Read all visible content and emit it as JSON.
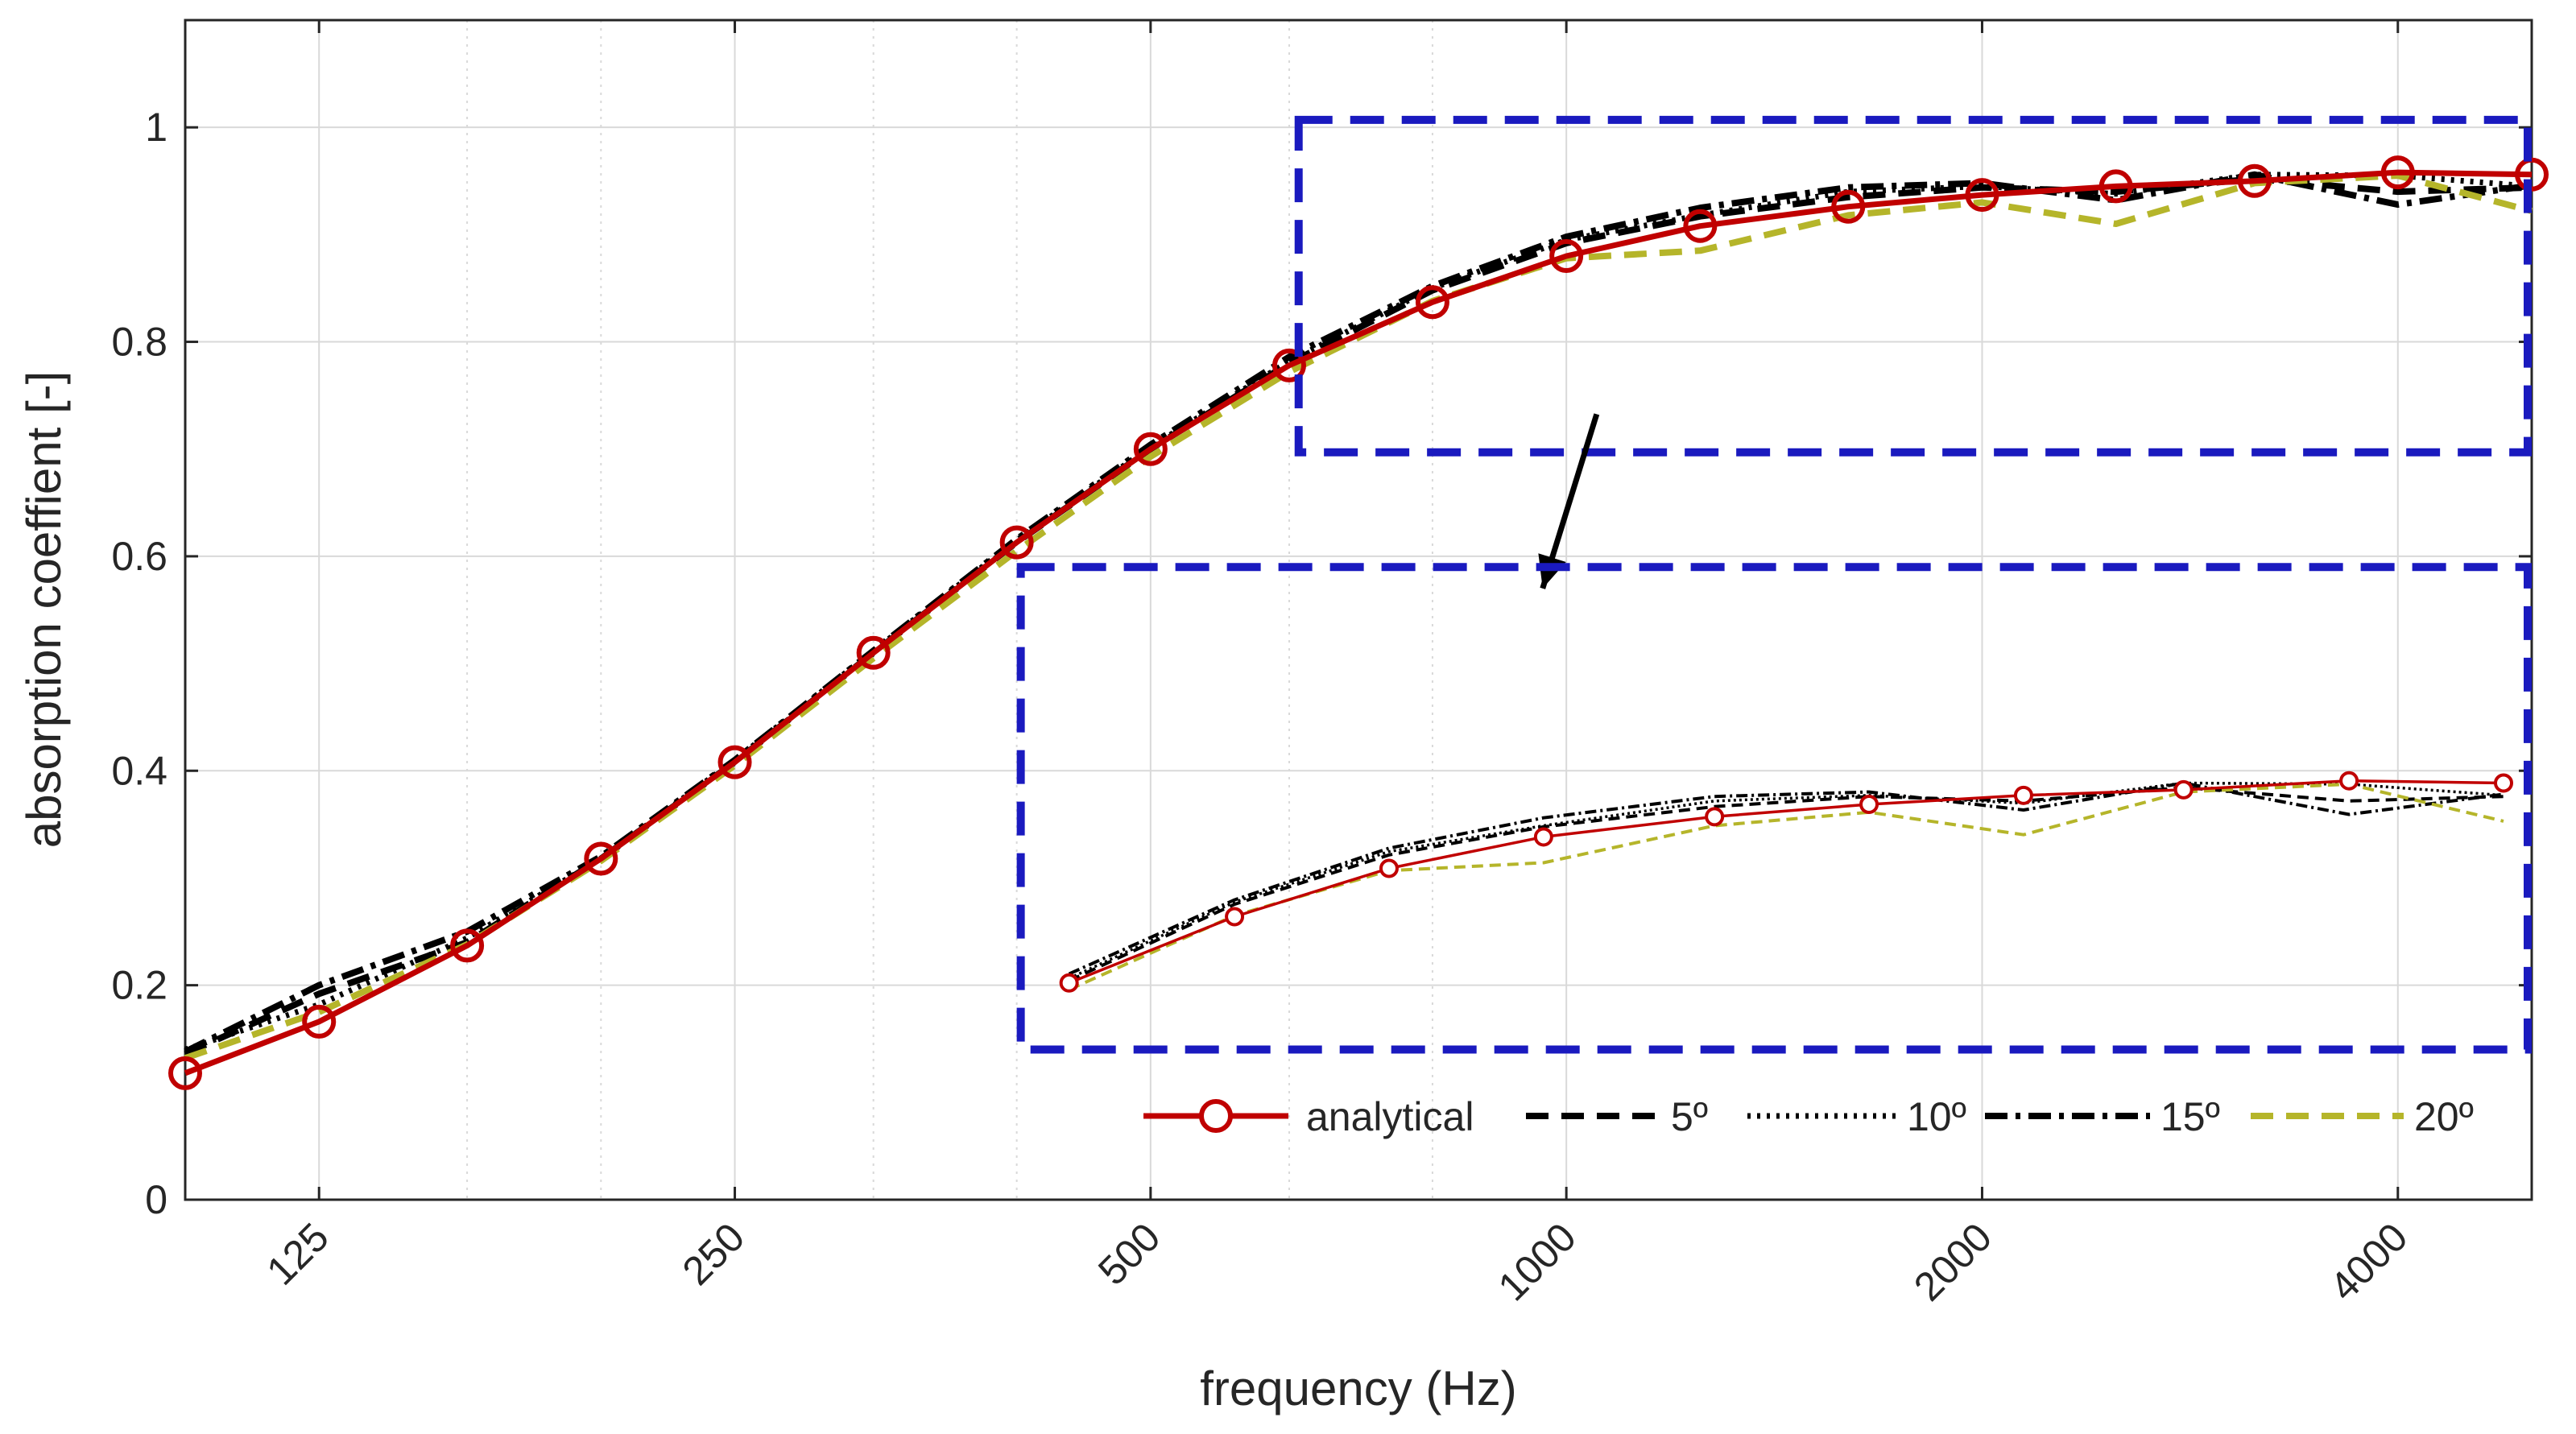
{
  "chart_data": {
    "type": "line",
    "xlabel": "frequency (Hz)",
    "ylabel": "absorption coeffient [-]",
    "xscale": "log2",
    "xlim": [
      100,
      5000
    ],
    "ylim": [
      0,
      1.1
    ],
    "xticks": [
      125,
      250,
      500,
      1000,
      2000,
      4000
    ],
    "yticks": [
      0,
      0.2,
      0.4,
      0.6,
      0.8,
      1
    ],
    "ytick_labels": [
      "0",
      "0.2",
      "0.4",
      "0.6",
      "0.8",
      "1"
    ],
    "grid": true,
    "legend_position": "bottom-right",
    "colors": {
      "analytical": "#c00000",
      "black": "#000000",
      "olive": "#b5b52a",
      "highlight": "#1a1abf",
      "grid": "#d9d9d9",
      "axes": "#262626"
    },
    "series": [
      {
        "name": "analytical",
        "style": "solid-marker",
        "x": [
          100,
          125,
          160,
          200,
          250,
          315,
          400,
          500,
          630,
          800,
          1000,
          1250,
          1600,
          2000,
          2500,
          3150,
          4000,
          5000
        ],
        "y": [
          0.118,
          0.166,
          0.237,
          0.318,
          0.408,
          0.51,
          0.613,
          0.7,
          0.778,
          0.837,
          0.88,
          0.908,
          0.926,
          0.937,
          0.945,
          0.95,
          0.958,
          0.956
        ]
      },
      {
        "name": "5º",
        "style": "dashed",
        "x": [
          100,
          125,
          160,
          200,
          250,
          315,
          400,
          500,
          630,
          800,
          1000,
          1250,
          1600,
          2000,
          2500,
          3150,
          4000,
          5000
        ],
        "y": [
          0.136,
          0.192,
          0.24,
          0.318,
          0.408,
          0.51,
          0.613,
          0.7,
          0.78,
          0.848,
          0.892,
          0.917,
          0.935,
          0.944,
          0.94,
          0.952,
          0.94,
          0.944
        ]
      },
      {
        "name": "10º",
        "style": "dotted",
        "x": [
          100,
          125,
          160,
          200,
          250,
          315,
          400,
          500,
          630,
          800,
          1000,
          1250,
          1600,
          2000,
          2500,
          3150,
          4000,
          5000
        ],
        "y": [
          0.14,
          0.182,
          0.244,
          0.318,
          0.41,
          0.512,
          0.615,
          0.702,
          0.782,
          0.85,
          0.895,
          0.918,
          0.94,
          0.945,
          0.938,
          0.956,
          0.955,
          0.945
        ]
      },
      {
        "name": "15º",
        "style": "dashdot",
        "x": [
          100,
          125,
          160,
          200,
          250,
          315,
          400,
          500,
          630,
          800,
          1000,
          1250,
          1600,
          2000,
          2500,
          3150,
          4000,
          5000
        ],
        "y": [
          0.138,
          0.2,
          0.25,
          0.32,
          0.41,
          0.512,
          0.616,
          0.704,
          0.786,
          0.852,
          0.898,
          0.925,
          0.944,
          0.948,
          0.932,
          0.956,
          0.928,
          0.946
        ]
      },
      {
        "name": "20º",
        "style": "dashed-olive",
        "x": [
          100,
          125,
          160,
          200,
          250,
          315,
          400,
          500,
          630,
          800,
          1000,
          1250,
          1600,
          2000,
          2500,
          3150,
          4000,
          5000
        ],
        "y": [
          0.132,
          0.175,
          0.238,
          0.316,
          0.405,
          0.505,
          0.605,
          0.693,
          0.772,
          0.838,
          0.878,
          0.885,
          0.918,
          0.93,
          0.91,
          0.948,
          0.955,
          0.922
        ]
      }
    ],
    "annotations": [
      {
        "type": "highlight-box",
        "label": "zoom source region",
        "x_range": [
          640,
          5000
        ],
        "y_range": [
          0.697,
          1.007
        ]
      },
      {
        "type": "arrow",
        "label": "zoom arrow",
        "from": [
          860,
          0.68
        ],
        "to": [
          730,
          0.54
        ]
      },
      {
        "type": "inset-box",
        "label": "magnified inset",
        "x_range": [
          400,
          5000
        ],
        "y_range": [
          0.14,
          0.59
        ],
        "shows_x_range": [
          630,
          5000
        ]
      }
    ]
  }
}
